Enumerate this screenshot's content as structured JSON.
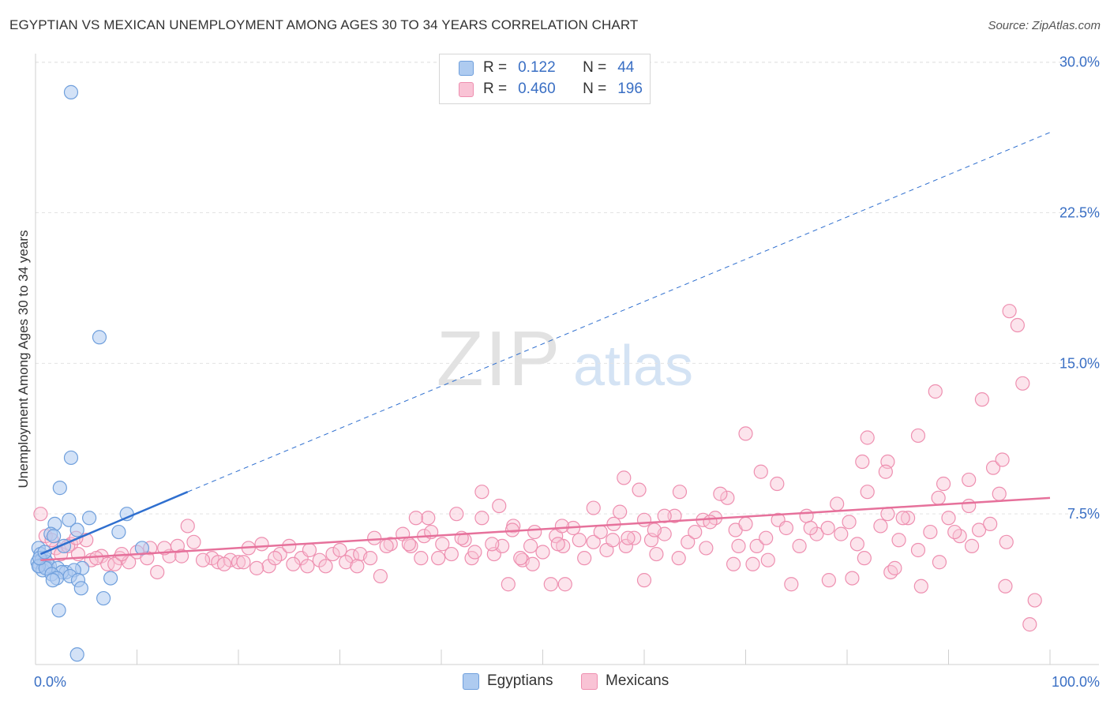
{
  "title": "EGYPTIAN VS MEXICAN UNEMPLOYMENT AMONG AGES 30 TO 34 YEARS CORRELATION CHART",
  "source": "Source: ZipAtlas.com",
  "watermark": {
    "zip": "ZIP",
    "atlas": "atlas"
  },
  "legend": {
    "rows": [
      {
        "r_label": "R =",
        "r_value": "0.122",
        "n_label": "N =",
        "n_value": "44"
      },
      {
        "r_label": "R =",
        "r_value": "0.460",
        "n_label": "N =",
        "n_value": "196"
      }
    ]
  },
  "bottom_legend": {
    "egyptians": "Egyptians",
    "mexicans": "Mexicans"
  },
  "colors": {
    "egyptians_fill": "#aecbf0",
    "egyptians_stroke": "#6f9fdc",
    "egyptians_line": "#2f6fcf",
    "mexicans_fill": "#f9c3d5",
    "mexicans_stroke": "#ee8fb0",
    "mexicans_line": "#e6719b",
    "tick_label": "#3a6fc4",
    "grid": "#e3e3e3"
  },
  "chart_data": {
    "type": "scatter",
    "title": "EGYPTIAN VS MEXICAN UNEMPLOYMENT AMONG AGES 30 TO 34 YEARS CORRELATION CHART",
    "xlabel": "",
    "ylabel": "Unemployment Among Ages 30 to 34 years",
    "xlim": [
      0,
      100
    ],
    "ylim": [
      0,
      30.5
    ],
    "x_tick_labels": [
      "0.0%",
      "100.0%"
    ],
    "y_ticks": [
      7.5,
      15.0,
      22.5,
      30.0
    ],
    "y_tick_labels": [
      "7.5%",
      "15.0%",
      "22.5%",
      "30.0%"
    ],
    "grid": true,
    "legend_position": "top-center",
    "series": [
      {
        "name": "Egyptians",
        "R": 0.122,
        "N": 44,
        "trend_solid": [
          [
            0.5,
            5.5
          ],
          [
            15,
            8.6
          ]
        ],
        "trend_dashed": [
          [
            15,
            8.6
          ],
          [
            100,
            26.5
          ]
        ],
        "points": [
          [
            3.5,
            28.5
          ],
          [
            6.3,
            16.3
          ],
          [
            3.5,
            10.3
          ],
          [
            2.4,
            8.8
          ],
          [
            3.3,
            7.2
          ],
          [
            5.3,
            7.3
          ],
          [
            9.0,
            7.5
          ],
          [
            1.9,
            7.0
          ],
          [
            4.1,
            6.7
          ],
          [
            8.2,
            6.6
          ],
          [
            1.5,
            6.5
          ],
          [
            1.8,
            6.4
          ],
          [
            0.3,
            5.8
          ],
          [
            2.8,
            5.9
          ],
          [
            10.5,
            5.8
          ],
          [
            0.5,
            5.5
          ],
          [
            0.9,
            5.3
          ],
          [
            0.2,
            5.1
          ],
          [
            0.6,
            5.2
          ],
          [
            0.8,
            5.0
          ],
          [
            1.1,
            5.1
          ],
          [
            0.4,
            4.9
          ],
          [
            1.2,
            4.8
          ],
          [
            0.7,
            4.7
          ],
          [
            1.4,
            4.9
          ],
          [
            2.2,
            4.8
          ],
          [
            3.0,
            4.6
          ],
          [
            4.6,
            4.8
          ],
          [
            3.8,
            4.7
          ],
          [
            2.6,
            4.6
          ],
          [
            0.3,
            4.9
          ],
          [
            1.0,
            4.8
          ],
          [
            0.4,
            5.3
          ],
          [
            1.6,
            4.5
          ],
          [
            2.1,
            4.3
          ],
          [
            1.7,
            4.2
          ],
          [
            3.4,
            4.4
          ],
          [
            4.2,
            4.2
          ],
          [
            7.4,
            4.3
          ],
          [
            4.5,
            3.8
          ],
          [
            6.7,
            3.3
          ],
          [
            2.3,
            2.7
          ],
          [
            4.1,
            0.5
          ],
          [
            0.9,
            5.6
          ]
        ]
      },
      {
        "name": "Mexicans",
        "R": 0.46,
        "N": 196,
        "trend": [
          [
            0.5,
            5.2
          ],
          [
            100,
            8.3
          ]
        ],
        "points": [
          [
            0.5,
            7.5
          ],
          [
            1.0,
            6.4
          ],
          [
            2.0,
            5.8
          ],
          [
            3.5,
            6.0
          ],
          [
            4.2,
            5.5
          ],
          [
            5.0,
            6.2
          ],
          [
            6.5,
            5.4
          ],
          [
            7.1,
            5.0
          ],
          [
            8.3,
            5.3
          ],
          [
            9.2,
            5.1
          ],
          [
            10.0,
            5.6
          ],
          [
            11.3,
            5.8
          ],
          [
            12.0,
            4.6
          ],
          [
            13.2,
            5.4
          ],
          [
            14.0,
            5.9
          ],
          [
            15.0,
            6.9
          ],
          [
            15.6,
            6.1
          ],
          [
            17.4,
            5.3
          ],
          [
            18.0,
            5.1
          ],
          [
            19.2,
            5.2
          ],
          [
            20.0,
            5.1
          ],
          [
            21.0,
            5.8
          ],
          [
            22.3,
            6.0
          ],
          [
            23.0,
            4.9
          ],
          [
            24.1,
            5.5
          ],
          [
            25.0,
            5.9
          ],
          [
            26.2,
            5.3
          ],
          [
            27.0,
            5.7
          ],
          [
            28.0,
            5.2
          ],
          [
            29.3,
            5.5
          ],
          [
            30.0,
            5.7
          ],
          [
            31.2,
            5.4
          ],
          [
            32.0,
            5.5
          ],
          [
            33.4,
            6.3
          ],
          [
            34.0,
            4.4
          ],
          [
            35.0,
            6.0
          ],
          [
            36.2,
            6.5
          ],
          [
            37.0,
            5.9
          ],
          [
            38.3,
            6.4
          ],
          [
            39.0,
            6.6
          ],
          [
            40.1,
            6.0
          ],
          [
            41.0,
            5.5
          ],
          [
            42.3,
            6.2
          ],
          [
            43.0,
            5.3
          ],
          [
            44.0,
            7.3
          ],
          [
            45.2,
            5.5
          ],
          [
            46.0,
            5.9
          ],
          [
            47.1,
            6.9
          ],
          [
            48.0,
            5.2
          ],
          [
            49.2,
            6.6
          ],
          [
            50.0,
            5.6
          ],
          [
            51.3,
            6.4
          ],
          [
            52.0,
            5.9
          ],
          [
            53.0,
            6.8
          ],
          [
            54.1,
            5.3
          ],
          [
            55.0,
            6.1
          ],
          [
            56.3,
            5.7
          ],
          [
            57.0,
            7.0
          ],
          [
            58.2,
            5.9
          ],
          [
            59.0,
            6.3
          ],
          [
            60.0,
            7.2
          ],
          [
            61.2,
            5.5
          ],
          [
            62.0,
            6.5
          ],
          [
            63.0,
            7.4
          ],
          [
            64.3,
            6.1
          ],
          [
            65.0,
            6.6
          ],
          [
            66.1,
            5.8
          ],
          [
            67.0,
            7.3
          ],
          [
            68.2,
            8.3
          ],
          [
            69.0,
            6.7
          ],
          [
            70.0,
            7.0
          ],
          [
            71.1,
            5.9
          ],
          [
            72.0,
            6.3
          ],
          [
            73.2,
            7.2
          ],
          [
            74.0,
            6.8
          ],
          [
            75.3,
            5.9
          ],
          [
            76.0,
            7.4
          ],
          [
            77.0,
            6.5
          ],
          [
            78.1,
            6.8
          ],
          [
            79.0,
            8.0
          ],
          [
            80.2,
            7.1
          ],
          [
            81.0,
            6.0
          ],
          [
            82.0,
            8.6
          ],
          [
            83.3,
            6.9
          ],
          [
            84.0,
            7.5
          ],
          [
            85.1,
            6.2
          ],
          [
            86.0,
            7.3
          ],
          [
            87.0,
            5.7
          ],
          [
            88.2,
            6.6
          ],
          [
            89.0,
            8.3
          ],
          [
            90.0,
            7.3
          ],
          [
            91.1,
            6.4
          ],
          [
            92.0,
            7.9
          ],
          [
            93.0,
            6.7
          ],
          [
            94.1,
            7.0
          ],
          [
            95.0,
            8.5
          ],
          [
            96.0,
            17.6
          ],
          [
            96.8,
            16.9
          ],
          [
            97.3,
            14.0
          ],
          [
            93.3,
            13.2
          ],
          [
            88.7,
            13.6
          ],
          [
            87.0,
            11.4
          ],
          [
            70.0,
            11.5
          ],
          [
            82.0,
            11.3
          ],
          [
            81.5,
            10.1
          ],
          [
            84.0,
            10.1
          ],
          [
            83.8,
            9.6
          ],
          [
            94.4,
            9.8
          ],
          [
            95.3,
            10.2
          ],
          [
            92.0,
            9.2
          ],
          [
            89.5,
            9.0
          ],
          [
            58.0,
            9.3
          ],
          [
            73.1,
            9.0
          ],
          [
            71.5,
            9.6
          ],
          [
            63.5,
            8.6
          ],
          [
            59.5,
            8.7
          ],
          [
            67.5,
            8.5
          ],
          [
            44.0,
            8.6
          ],
          [
            45.7,
            7.9
          ],
          [
            41.5,
            7.5
          ],
          [
            38.7,
            7.3
          ],
          [
            37.5,
            7.3
          ],
          [
            55.0,
            7.8
          ],
          [
            58.4,
            6.3
          ],
          [
            60.7,
            6.2
          ],
          [
            47.0,
            6.7
          ],
          [
            51.5,
            6.0
          ],
          [
            62.0,
            7.4
          ],
          [
            65.8,
            7.2
          ],
          [
            48.8,
            5.9
          ],
          [
            52.2,
            4.0
          ],
          [
            50.8,
            4.0
          ],
          [
            46.6,
            4.0
          ],
          [
            60.0,
            4.2
          ],
          [
            63.4,
            5.3
          ],
          [
            68.8,
            5.0
          ],
          [
            70.7,
            5.0
          ],
          [
            72.2,
            5.2
          ],
          [
            80.5,
            4.3
          ],
          [
            81.7,
            5.3
          ],
          [
            84.3,
            4.6
          ],
          [
            84.7,
            4.8
          ],
          [
            87.3,
            3.9
          ],
          [
            89.1,
            5.1
          ],
          [
            92.3,
            5.9
          ],
          [
            95.7,
            6.1
          ],
          [
            95.6,
            3.9
          ],
          [
            98.5,
            3.2
          ],
          [
            98.0,
            2.0
          ],
          [
            74.5,
            4.0
          ],
          [
            78.2,
            4.2
          ],
          [
            1.6,
            6.2
          ],
          [
            2.5,
            5.5
          ],
          [
            3.2,
            5.9
          ],
          [
            4.0,
            6.3
          ],
          [
            5.5,
            5.2
          ],
          [
            6.0,
            5.3
          ],
          [
            7.8,
            5.0
          ],
          [
            8.5,
            5.5
          ],
          [
            11.0,
            5.3
          ],
          [
            12.7,
            5.8
          ],
          [
            14.4,
            5.4
          ],
          [
            16.5,
            5.2
          ],
          [
            18.6,
            5.0
          ],
          [
            20.5,
            5.1
          ],
          [
            21.8,
            4.8
          ],
          [
            23.6,
            5.3
          ],
          [
            25.4,
            5.0
          ],
          [
            26.8,
            4.9
          ],
          [
            28.6,
            4.9
          ],
          [
            30.6,
            5.1
          ],
          [
            31.7,
            4.9
          ],
          [
            33.0,
            5.3
          ],
          [
            34.6,
            5.9
          ],
          [
            36.8,
            6.0
          ],
          [
            38.0,
            5.3
          ],
          [
            39.7,
            5.3
          ],
          [
            42.0,
            6.3
          ],
          [
            43.3,
            5.6
          ],
          [
            45.0,
            6.0
          ],
          [
            47.8,
            5.3
          ],
          [
            49.0,
            5.0
          ],
          [
            51.9,
            6.9
          ],
          [
            53.6,
            6.2
          ],
          [
            55.7,
            6.6
          ],
          [
            56.9,
            6.2
          ],
          [
            57.6,
            7.6
          ],
          [
            61.0,
            6.7
          ],
          [
            66.5,
            7.1
          ],
          [
            69.3,
            5.9
          ],
          [
            76.4,
            6.8
          ],
          [
            79.4,
            6.5
          ],
          [
            85.5,
            7.3
          ],
          [
            90.6,
            6.6
          ]
        ]
      }
    ]
  }
}
